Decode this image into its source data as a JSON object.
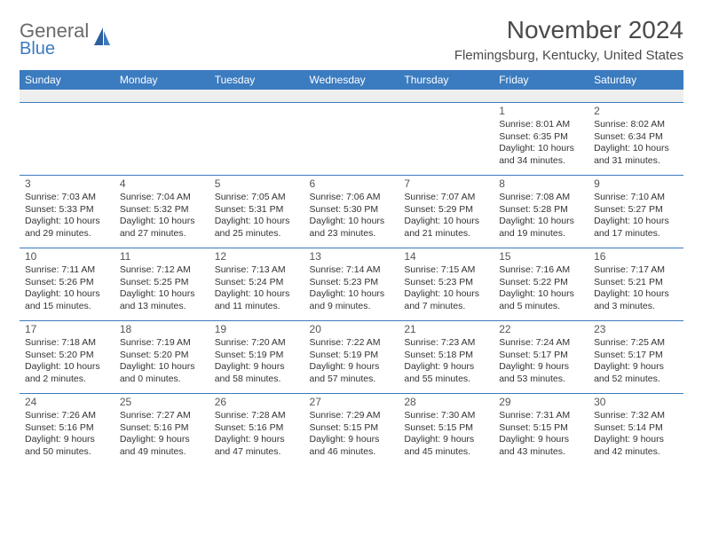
{
  "logo": {
    "general": "General",
    "blue": "Blue"
  },
  "title": "November 2024",
  "location": "Flemingsburg, Kentucky, United States",
  "colors": {
    "header_bg": "#3b7bbf",
    "header_text": "#ffffff",
    "logo_gray": "#6a6a6a",
    "logo_blue": "#3b7bbf",
    "text": "#333333",
    "spacer": "#eeeeee",
    "border": "#3b7bbf"
  },
  "day_labels": [
    "Sunday",
    "Monday",
    "Tuesday",
    "Wednesday",
    "Thursday",
    "Friday",
    "Saturday"
  ],
  "weeks": [
    [
      null,
      null,
      null,
      null,
      null,
      {
        "n": "1",
        "sr": "Sunrise: 8:01 AM",
        "ss": "Sunset: 6:35 PM",
        "d1": "Daylight: 10 hours",
        "d2": "and 34 minutes."
      },
      {
        "n": "2",
        "sr": "Sunrise: 8:02 AM",
        "ss": "Sunset: 6:34 PM",
        "d1": "Daylight: 10 hours",
        "d2": "and 31 minutes."
      }
    ],
    [
      {
        "n": "3",
        "sr": "Sunrise: 7:03 AM",
        "ss": "Sunset: 5:33 PM",
        "d1": "Daylight: 10 hours",
        "d2": "and 29 minutes."
      },
      {
        "n": "4",
        "sr": "Sunrise: 7:04 AM",
        "ss": "Sunset: 5:32 PM",
        "d1": "Daylight: 10 hours",
        "d2": "and 27 minutes."
      },
      {
        "n": "5",
        "sr": "Sunrise: 7:05 AM",
        "ss": "Sunset: 5:31 PM",
        "d1": "Daylight: 10 hours",
        "d2": "and 25 minutes."
      },
      {
        "n": "6",
        "sr": "Sunrise: 7:06 AM",
        "ss": "Sunset: 5:30 PM",
        "d1": "Daylight: 10 hours",
        "d2": "and 23 minutes."
      },
      {
        "n": "7",
        "sr": "Sunrise: 7:07 AM",
        "ss": "Sunset: 5:29 PM",
        "d1": "Daylight: 10 hours",
        "d2": "and 21 minutes."
      },
      {
        "n": "8",
        "sr": "Sunrise: 7:08 AM",
        "ss": "Sunset: 5:28 PM",
        "d1": "Daylight: 10 hours",
        "d2": "and 19 minutes."
      },
      {
        "n": "9",
        "sr": "Sunrise: 7:10 AM",
        "ss": "Sunset: 5:27 PM",
        "d1": "Daylight: 10 hours",
        "d2": "and 17 minutes."
      }
    ],
    [
      {
        "n": "10",
        "sr": "Sunrise: 7:11 AM",
        "ss": "Sunset: 5:26 PM",
        "d1": "Daylight: 10 hours",
        "d2": "and 15 minutes."
      },
      {
        "n": "11",
        "sr": "Sunrise: 7:12 AM",
        "ss": "Sunset: 5:25 PM",
        "d1": "Daylight: 10 hours",
        "d2": "and 13 minutes."
      },
      {
        "n": "12",
        "sr": "Sunrise: 7:13 AM",
        "ss": "Sunset: 5:24 PM",
        "d1": "Daylight: 10 hours",
        "d2": "and 11 minutes."
      },
      {
        "n": "13",
        "sr": "Sunrise: 7:14 AM",
        "ss": "Sunset: 5:23 PM",
        "d1": "Daylight: 10 hours",
        "d2": "and 9 minutes."
      },
      {
        "n": "14",
        "sr": "Sunrise: 7:15 AM",
        "ss": "Sunset: 5:23 PM",
        "d1": "Daylight: 10 hours",
        "d2": "and 7 minutes."
      },
      {
        "n": "15",
        "sr": "Sunrise: 7:16 AM",
        "ss": "Sunset: 5:22 PM",
        "d1": "Daylight: 10 hours",
        "d2": "and 5 minutes."
      },
      {
        "n": "16",
        "sr": "Sunrise: 7:17 AM",
        "ss": "Sunset: 5:21 PM",
        "d1": "Daylight: 10 hours",
        "d2": "and 3 minutes."
      }
    ],
    [
      {
        "n": "17",
        "sr": "Sunrise: 7:18 AM",
        "ss": "Sunset: 5:20 PM",
        "d1": "Daylight: 10 hours",
        "d2": "and 2 minutes."
      },
      {
        "n": "18",
        "sr": "Sunrise: 7:19 AM",
        "ss": "Sunset: 5:20 PM",
        "d1": "Daylight: 10 hours",
        "d2": "and 0 minutes."
      },
      {
        "n": "19",
        "sr": "Sunrise: 7:20 AM",
        "ss": "Sunset: 5:19 PM",
        "d1": "Daylight: 9 hours",
        "d2": "and 58 minutes."
      },
      {
        "n": "20",
        "sr": "Sunrise: 7:22 AM",
        "ss": "Sunset: 5:19 PM",
        "d1": "Daylight: 9 hours",
        "d2": "and 57 minutes."
      },
      {
        "n": "21",
        "sr": "Sunrise: 7:23 AM",
        "ss": "Sunset: 5:18 PM",
        "d1": "Daylight: 9 hours",
        "d2": "and 55 minutes."
      },
      {
        "n": "22",
        "sr": "Sunrise: 7:24 AM",
        "ss": "Sunset: 5:17 PM",
        "d1": "Daylight: 9 hours",
        "d2": "and 53 minutes."
      },
      {
        "n": "23",
        "sr": "Sunrise: 7:25 AM",
        "ss": "Sunset: 5:17 PM",
        "d1": "Daylight: 9 hours",
        "d2": "and 52 minutes."
      }
    ],
    [
      {
        "n": "24",
        "sr": "Sunrise: 7:26 AM",
        "ss": "Sunset: 5:16 PM",
        "d1": "Daylight: 9 hours",
        "d2": "and 50 minutes."
      },
      {
        "n": "25",
        "sr": "Sunrise: 7:27 AM",
        "ss": "Sunset: 5:16 PM",
        "d1": "Daylight: 9 hours",
        "d2": "and 49 minutes."
      },
      {
        "n": "26",
        "sr": "Sunrise: 7:28 AM",
        "ss": "Sunset: 5:16 PM",
        "d1": "Daylight: 9 hours",
        "d2": "and 47 minutes."
      },
      {
        "n": "27",
        "sr": "Sunrise: 7:29 AM",
        "ss": "Sunset: 5:15 PM",
        "d1": "Daylight: 9 hours",
        "d2": "and 46 minutes."
      },
      {
        "n": "28",
        "sr": "Sunrise: 7:30 AM",
        "ss": "Sunset: 5:15 PM",
        "d1": "Daylight: 9 hours",
        "d2": "and 45 minutes."
      },
      {
        "n": "29",
        "sr": "Sunrise: 7:31 AM",
        "ss": "Sunset: 5:15 PM",
        "d1": "Daylight: 9 hours",
        "d2": "and 43 minutes."
      },
      {
        "n": "30",
        "sr": "Sunrise: 7:32 AM",
        "ss": "Sunset: 5:14 PM",
        "d1": "Daylight: 9 hours",
        "d2": "and 42 minutes."
      }
    ]
  ]
}
